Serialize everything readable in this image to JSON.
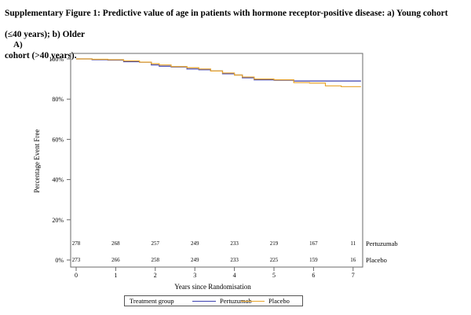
{
  "caption": {
    "line1": "Supplementary Figure 1: Predictive value of age in patients with hormone receptor-positive disease: a) Young cohort (≤40 years); b) Older",
    "line2": "cohort (>40 years)."
  },
  "panel_label": "A)",
  "legend": {
    "title": "Treatment group",
    "items": [
      {
        "label": "Pertuzumab",
        "color": "#3b3fae"
      },
      {
        "label": "Placebo",
        "color": "#e8a42a"
      }
    ]
  },
  "chart_data": {
    "type": "line",
    "xlabel": "Years since Randomisation",
    "ylabel": "Percentage Event Free",
    "xlim": [
      0,
      7
    ],
    "ylim": [
      0,
      100
    ],
    "x_ticks": [
      "0",
      "1",
      "2",
      "3",
      "4",
      "5",
      "6",
      "7"
    ],
    "y_ticks": [
      "0%",
      "20%",
      "40%",
      "60%",
      "80%",
      "100%"
    ],
    "series": [
      {
        "name": "Pertuzumab",
        "color": "#3b3fae",
        "x": [
          0,
          0.4,
          0.8,
          1.2,
          1.6,
          1.9,
          2.1,
          2.4,
          2.8,
          3.1,
          3.4,
          3.7,
          4.0,
          4.2,
          4.5,
          5.0,
          5.5,
          6.0,
          6.5,
          7.0,
          7.2
        ],
        "y": [
          100,
          99.6,
          99.4,
          98.6,
          98.4,
          97,
          96.4,
          96,
          95,
          94.6,
          94,
          92.6,
          92,
          90.6,
          89.6,
          89.4,
          89,
          89,
          89,
          89,
          89
        ]
      },
      {
        "name": "Placebo",
        "color": "#e8a42a",
        "x": [
          0,
          0.4,
          0.8,
          1.2,
          1.6,
          1.9,
          2.1,
          2.4,
          2.8,
          3.1,
          3.4,
          3.7,
          4.0,
          4.2,
          4.5,
          5.0,
          5.5,
          5.9,
          6.3,
          6.7,
          7.0,
          7.2
        ],
        "y": [
          100,
          99.8,
          99.6,
          99,
          98.4,
          97.6,
          97,
          96.2,
          95.6,
          95,
          94,
          93,
          92,
          91,
          90,
          89.6,
          88.2,
          88,
          86.6,
          86.2,
          86.2,
          86.2
        ]
      }
    ],
    "at_risk": [
      {
        "name": "Pertuzumab",
        "values": [
          "278",
          "268",
          "257",
          "249",
          "233",
          "219",
          "167",
          "11"
        ]
      },
      {
        "name": "Placebo",
        "values": [
          "273",
          "266",
          "258",
          "249",
          "233",
          "225",
          "159",
          "16"
        ]
      }
    ]
  }
}
